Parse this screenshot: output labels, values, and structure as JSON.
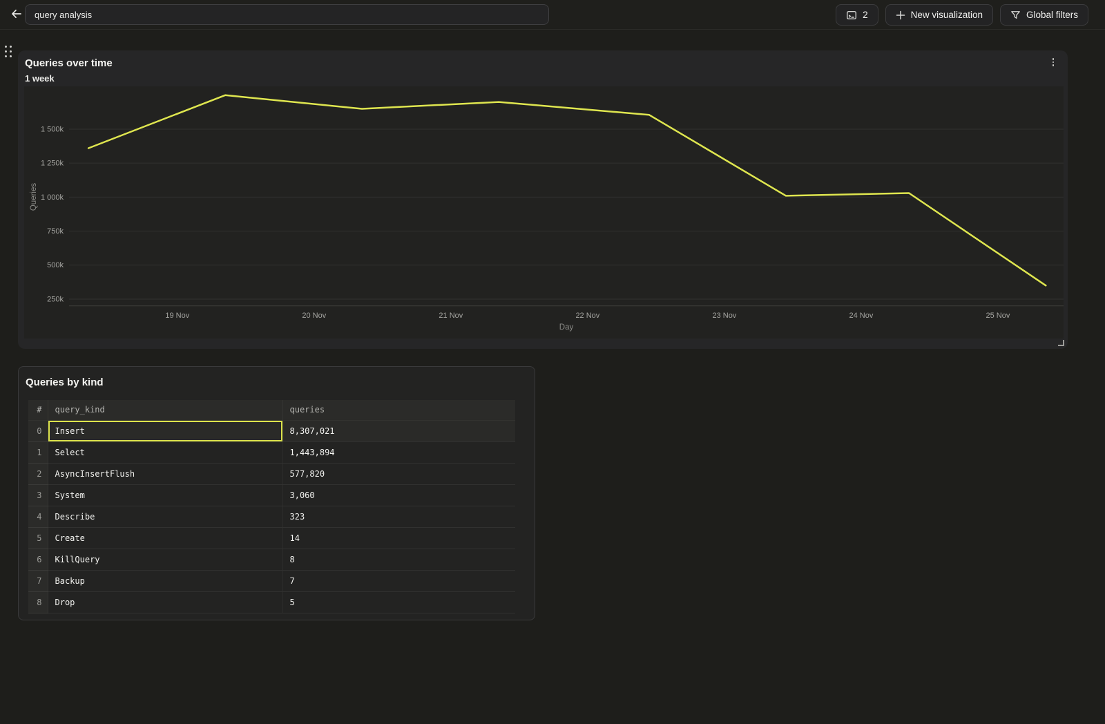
{
  "topbar": {
    "back_icon": "arrow-left",
    "title_input": {
      "value": "query analysis"
    },
    "tab_count_button": {
      "icon": "terminal-icon",
      "label": "2"
    },
    "new_visualization_button": {
      "icon": "plus-icon",
      "label": "New visualization"
    },
    "global_filters_button": {
      "icon": "funnel-icon",
      "label": "Global filters"
    }
  },
  "chart_card": {
    "title": "Queries over time",
    "subtitle": "1 week",
    "menu_icon": "kebab-menu-icon",
    "resize_icon": "resize-corner-icon"
  },
  "chart_data": {
    "type": "line",
    "title": "Queries over time",
    "subtitle": "1 week",
    "xlabel": "Day",
    "ylabel": "Queries",
    "grid": "horizontal",
    "legend": "none",
    "xlim": [
      17.88,
      25.48
    ],
    "ylim": [
      -40000,
      1815000
    ],
    "baseline_value": 200000,
    "x_ticks": [
      {
        "value": 19,
        "label": "19 Nov"
      },
      {
        "value": 20,
        "label": "20 Nov"
      },
      {
        "value": 21,
        "label": "21 Nov"
      },
      {
        "value": 22,
        "label": "22 Nov"
      },
      {
        "value": 23,
        "label": "23 Nov"
      },
      {
        "value": 24,
        "label": "24 Nov"
      },
      {
        "value": 25,
        "label": "25 Nov"
      }
    ],
    "y_ticks": [
      {
        "value": 250000,
        "label": "250k"
      },
      {
        "value": 500000,
        "label": "500k"
      },
      {
        "value": 750000,
        "label": "750k"
      },
      {
        "value": 1000000,
        "label": "1 000k"
      },
      {
        "value": 1250000,
        "label": "1 250k"
      },
      {
        "value": 1500000,
        "label": "1 500k"
      }
    ],
    "series": [
      {
        "name": "Queries",
        "color": "#dfe64f",
        "points": [
          {
            "day": 18.35,
            "queries": 1360000
          },
          {
            "day": 19.35,
            "queries": 1750000
          },
          {
            "day": 20.35,
            "queries": 1650000
          },
          {
            "day": 21.35,
            "queries": 1700000
          },
          {
            "day": 22.45,
            "queries": 1605000
          },
          {
            "day": 23.45,
            "queries": 1010000
          },
          {
            "day": 24.35,
            "queries": 1030000
          },
          {
            "day": 25.35,
            "queries": 350000
          }
        ]
      }
    ]
  },
  "table_card": {
    "title": "Queries by kind",
    "table": {
      "columns": [
        "#",
        "query_kind",
        "queries"
      ],
      "rows": [
        {
          "index": 0,
          "query_kind": "Insert",
          "queries": "8,307,021"
        },
        {
          "index": 1,
          "query_kind": "Select",
          "queries": "1,443,894"
        },
        {
          "index": 2,
          "query_kind": "AsyncInsertFlush",
          "queries": "577,820"
        },
        {
          "index": 3,
          "query_kind": "System",
          "queries": "3,060"
        },
        {
          "index": 4,
          "query_kind": "Describe",
          "queries": "323"
        },
        {
          "index": 5,
          "query_kind": "Create",
          "queries": "14"
        },
        {
          "index": 6,
          "query_kind": "KillQuery",
          "queries": "8"
        },
        {
          "index": 7,
          "query_kind": "Backup",
          "queries": "7"
        },
        {
          "index": 8,
          "query_kind": "Drop",
          "queries": "5"
        }
      ],
      "selected_cell": {
        "row_index": 0,
        "column": "query_kind"
      }
    }
  },
  "colors": {
    "page_bg": "#1e1e1b",
    "card_bg": "#262627",
    "plot_bg": "#222220",
    "line": "#dfe64f",
    "selected_cell_border": "#dde44b",
    "gridline": "#31312f",
    "tick_text": "#a5a5a1"
  }
}
